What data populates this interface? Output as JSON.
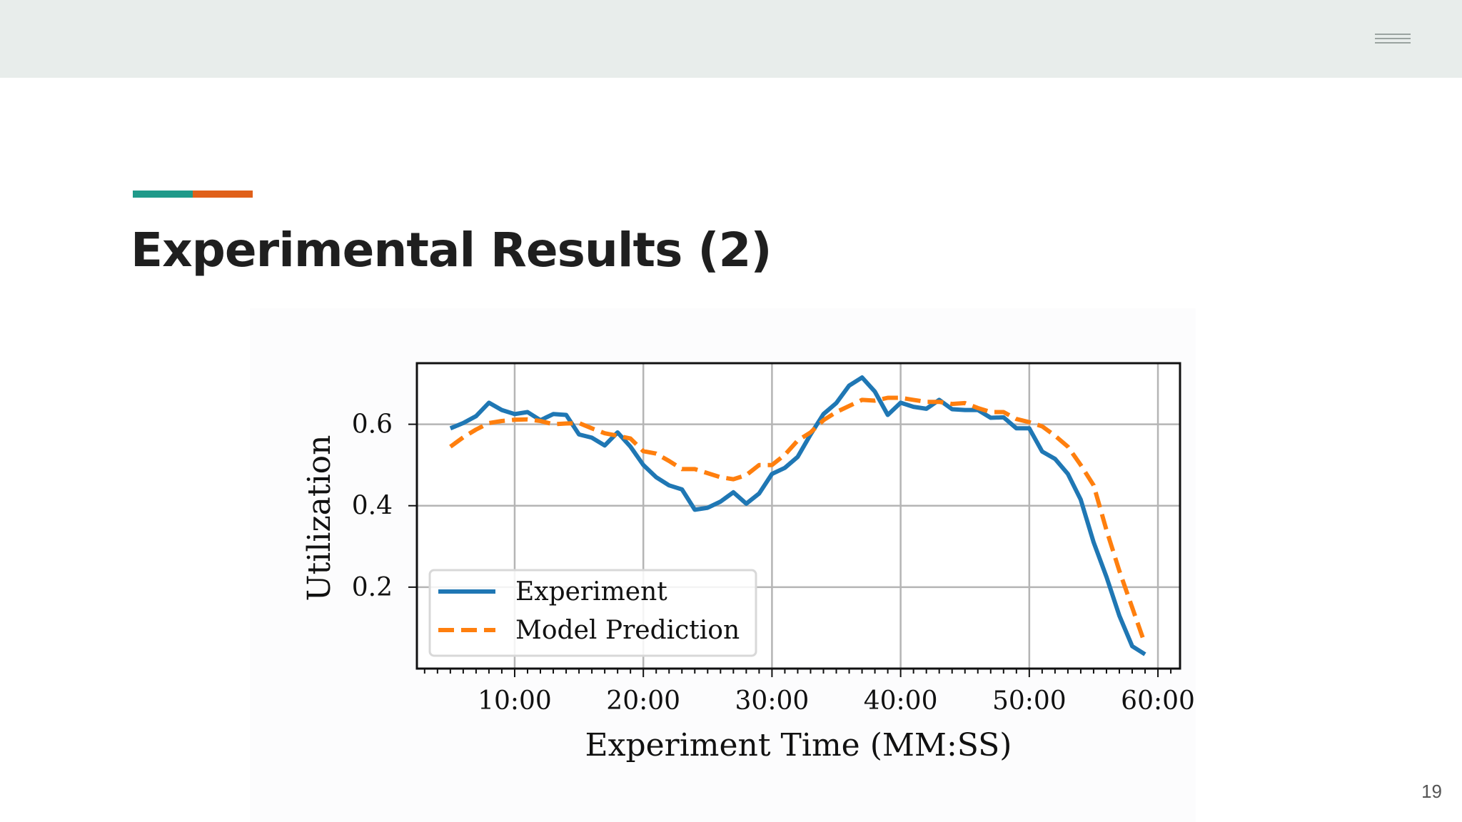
{
  "slide": {
    "title": "Experimental Results (2)",
    "page_number": "19",
    "accent_colors": [
      "#1f9a8a",
      "#e0601a"
    ],
    "menu_icon": "hamburger-icon"
  },
  "chart_data": {
    "type": "line",
    "xlabel": "Experiment Time (MM:SS)",
    "ylabel": "Utilization",
    "xlim": [
      "02:24",
      "61:43"
    ],
    "ylim": [
      0.0,
      0.75
    ],
    "x_ticks": [
      "10:00",
      "20:00",
      "30:00",
      "40:00",
      "50:00",
      "60:00"
    ],
    "y_ticks": [
      "0.2",
      "0.4",
      "0.6"
    ],
    "grid": true,
    "legend_position": "lower-left",
    "x": [
      "05:00",
      "06:00",
      "07:00",
      "08:00",
      "09:00",
      "10:00",
      "11:00",
      "12:00",
      "13:00",
      "14:00",
      "15:00",
      "16:00",
      "17:00",
      "18:00",
      "19:00",
      "20:00",
      "21:00",
      "22:00",
      "23:00",
      "24:00",
      "25:00",
      "26:00",
      "27:00",
      "28:00",
      "29:00",
      "30:00",
      "31:00",
      "32:00",
      "33:00",
      "34:00",
      "35:00",
      "36:00",
      "37:00",
      "38:00",
      "39:00",
      "40:00",
      "41:00",
      "42:00",
      "43:00",
      "44:00",
      "45:00",
      "46:00",
      "47:00",
      "48:00",
      "49:00",
      "50:00",
      "51:00",
      "52:00",
      "53:00",
      "54:00",
      "55:00",
      "56:00",
      "57:00",
      "58:00",
      "59:00"
    ],
    "series": [
      {
        "name": "Experiment",
        "color": "#1f77b4",
        "style": "solid",
        "values": [
          0.59,
          0.603,
          0.62,
          0.653,
          0.635,
          0.625,
          0.63,
          0.61,
          0.625,
          0.623,
          0.575,
          0.567,
          0.548,
          0.58,
          0.545,
          0.5,
          0.47,
          0.45,
          0.44,
          0.39,
          0.395,
          0.41,
          0.433,
          0.405,
          0.43,
          0.478,
          0.493,
          0.52,
          0.575,
          0.625,
          0.652,
          0.695,
          0.715,
          0.68,
          0.623,
          0.653,
          0.643,
          0.638,
          0.66,
          0.637,
          0.635,
          0.635,
          0.616,
          0.617,
          0.59,
          0.59,
          0.533,
          0.515,
          0.478,
          0.415,
          0.31,
          0.225,
          0.13,
          0.055,
          0.035
        ]
      },
      {
        "name": "Model Prediction",
        "color": "#ff7f0e",
        "style": "dashed",
        "values": [
          0.545,
          0.568,
          0.587,
          0.603,
          0.608,
          0.611,
          0.612,
          0.608,
          0.6,
          0.602,
          0.603,
          0.59,
          0.578,
          0.572,
          0.565,
          0.534,
          0.528,
          0.51,
          0.49,
          0.49,
          0.48,
          0.47,
          0.465,
          0.475,
          0.5,
          0.5,
          0.525,
          0.56,
          0.58,
          0.61,
          0.63,
          0.645,
          0.66,
          0.658,
          0.665,
          0.665,
          0.66,
          0.655,
          0.655,
          0.65,
          0.652,
          0.64,
          0.63,
          0.63,
          0.613,
          0.605,
          0.595,
          0.572,
          0.545,
          0.5,
          0.45,
          0.34,
          0.24,
          0.15,
          0.06
        ]
      }
    ]
  }
}
